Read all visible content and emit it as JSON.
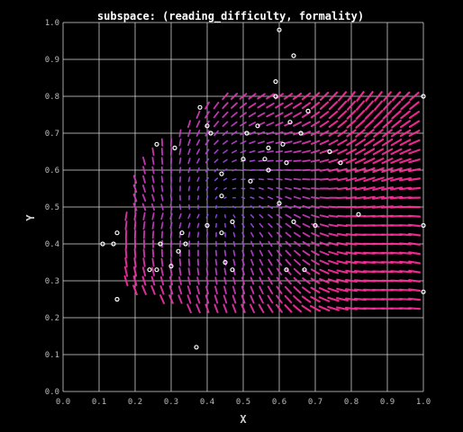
{
  "chart_data": {
    "type": "scatter",
    "title": "subspace: (reading_difficulty, formality)",
    "xlabel": "X",
    "ylabel": "Y",
    "xlim": [
      0.0,
      1.0
    ],
    "ylim": [
      0.0,
      1.0
    ],
    "grid": true,
    "xticks": [
      "0.0",
      "0.1",
      "0.2",
      "0.3",
      "0.4",
      "0.5",
      "0.6",
      "0.7",
      "0.8",
      "0.9",
      "1.0"
    ],
    "yticks": [
      "0.0",
      "0.1",
      "0.2",
      "0.3",
      "0.4",
      "0.5",
      "0.6",
      "0.7",
      "0.8",
      "0.9",
      "1.0"
    ],
    "colors": {
      "background": "#000000",
      "grid": "#d9d9d9",
      "point": "#ffffff",
      "arrow_low": "#7a54ff",
      "arrow_high": "#ff2e9a"
    },
    "points": [
      [
        0.11,
        0.4
      ],
      [
        0.14,
        0.4
      ],
      [
        0.15,
        0.43
      ],
      [
        0.15,
        0.25
      ],
      [
        0.24,
        0.33
      ],
      [
        0.26,
        0.33
      ],
      [
        0.27,
        0.4
      ],
      [
        0.26,
        0.67
      ],
      [
        0.31,
        0.66
      ],
      [
        0.3,
        0.34
      ],
      [
        0.32,
        0.38
      ],
      [
        0.33,
        0.43
      ],
      [
        0.34,
        0.4
      ],
      [
        0.37,
        0.12
      ],
      [
        0.38,
        0.77
      ],
      [
        0.4,
        0.72
      ],
      [
        0.41,
        0.7
      ],
      [
        0.4,
        0.45
      ],
      [
        0.44,
        0.59
      ],
      [
        0.44,
        0.53
      ],
      [
        0.44,
        0.43
      ],
      [
        0.45,
        0.35
      ],
      [
        0.47,
        0.33
      ],
      [
        0.47,
        0.46
      ],
      [
        0.5,
        0.63
      ],
      [
        0.51,
        0.7
      ],
      [
        0.52,
        0.57
      ],
      [
        0.54,
        0.72
      ],
      [
        0.56,
        0.63
      ],
      [
        0.57,
        0.6
      ],
      [
        0.57,
        0.66
      ],
      [
        0.59,
        0.84
      ],
      [
        0.59,
        0.8
      ],
      [
        0.6,
        0.98
      ],
      [
        0.6,
        0.51
      ],
      [
        0.61,
        0.67
      ],
      [
        0.62,
        0.62
      ],
      [
        0.62,
        0.33
      ],
      [
        0.63,
        0.73
      ],
      [
        0.64,
        0.91
      ],
      [
        0.64,
        0.46
      ],
      [
        0.66,
        0.7
      ],
      [
        0.67,
        0.33
      ],
      [
        0.68,
        0.76
      ],
      [
        0.7,
        0.45
      ],
      [
        0.74,
        0.65
      ],
      [
        0.77,
        0.62
      ],
      [
        0.82,
        0.48
      ],
      [
        1.0,
        0.8
      ],
      [
        1.0,
        0.45
      ],
      [
        1.0,
        0.27
      ]
    ],
    "vector_field": {
      "x_range": [
        0.15,
        1.0
      ],
      "y_range": [
        0.2,
        0.8
      ],
      "step": 0.025,
      "region_vertices": [
        [
          0.15,
          0.4
        ],
        [
          0.2,
          0.6
        ],
        [
          0.25,
          0.66
        ],
        [
          0.45,
          0.82
        ],
        [
          0.55,
          0.88
        ],
        [
          0.6,
          0.86
        ],
        [
          0.65,
          0.83
        ],
        [
          1.0,
          0.8
        ],
        [
          1.0,
          0.22
        ],
        [
          0.4,
          0.2
        ],
        [
          0.18,
          0.28
        ]
      ]
    }
  }
}
